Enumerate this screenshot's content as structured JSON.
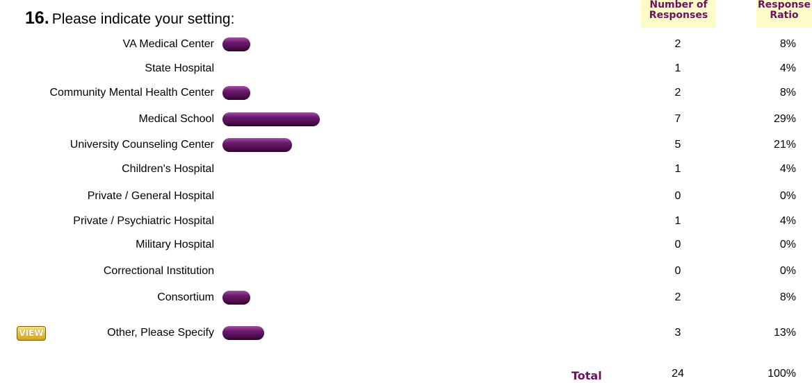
{
  "question": {
    "number": "16.",
    "text": "Please indicate your setting:"
  },
  "headers": {
    "count": [
      "Number of",
      "Responses"
    ],
    "ratio": [
      "Response",
      "Ratio"
    ]
  },
  "view_button_label": "VIEW",
  "total": {
    "label": "Total",
    "count": "24",
    "ratio": "100%"
  },
  "colors": {
    "bar": "#5a125a",
    "header_bg": "#fdfbc8",
    "header_text": "#6e1060"
  },
  "chart_data": {
    "type": "bar",
    "categories": [
      "VA Medical Center",
      "State Hospital",
      "Community Mental Health Center",
      "Medical School",
      "University Counseling Center",
      "Children's Hospital",
      "Private / General Hospital",
      "Private / Psychiatric Hospital",
      "Military Hospital",
      "Correctional Institution",
      "Consortium",
      "Other, Please Specify"
    ],
    "values": [
      2,
      1,
      2,
      7,
      5,
      1,
      0,
      1,
      0,
      0,
      2,
      3
    ],
    "ratios": [
      "8%",
      "4%",
      "8%",
      "29%",
      "21%",
      "4%",
      "0%",
      "4%",
      "0%",
      "0%",
      "8%",
      "13%"
    ],
    "counts": [
      "2",
      "1",
      "2",
      "7",
      "5",
      "1",
      "0",
      "1",
      "0",
      "0",
      "2",
      "3"
    ]
  }
}
